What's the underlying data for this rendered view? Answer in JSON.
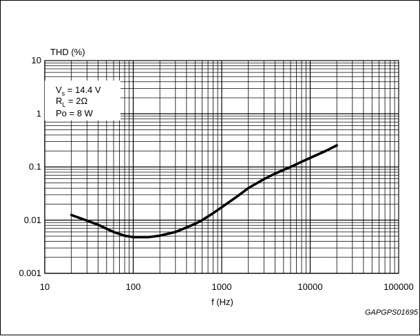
{
  "figure_code": "GAPGPS01695",
  "conditions": {
    "vs": {
      "symbol": "V",
      "sub": "s",
      "value": " = 14.4 V"
    },
    "rl": {
      "symbol": "R",
      "sub": "L",
      "value": " = 2Ω"
    },
    "po": {
      "text": "Po = 8 W"
    }
  },
  "chart_data": {
    "type": "line",
    "ylabel": "THD (%)",
    "xlabel": "f (Hz)",
    "x_scale": "log",
    "y_scale": "log",
    "xlim": [
      10,
      100000
    ],
    "ylim": [
      0.001,
      10
    ],
    "x_ticks": [
      10,
      100,
      1000,
      10000,
      100000
    ],
    "x_tick_labels": [
      "10",
      "100",
      "1000",
      "10000",
      "100000"
    ],
    "y_ticks": [
      0.001,
      0.01,
      0.1,
      1,
      10
    ],
    "y_tick_labels": [
      "0.001",
      "0.01",
      "0.1",
      "1",
      "10"
    ],
    "grid": true,
    "line_color": "#000000",
    "series": [
      {
        "x": [
          20,
          30,
          40,
          50,
          60,
          70,
          80,
          100,
          120,
          150,
          200,
          300,
          400,
          500,
          600,
          800,
          1000,
          1500,
          2000,
          3000,
          4000,
          5000,
          6000,
          8000,
          10000,
          15000,
          20000
        ],
        "values": [
          0.0125,
          0.0098,
          0.0082,
          0.0069,
          0.006,
          0.0055,
          0.0051,
          0.0048,
          0.0048,
          0.0048,
          0.0051,
          0.006,
          0.0073,
          0.0085,
          0.01,
          0.0135,
          0.0175,
          0.028,
          0.04,
          0.059,
          0.075,
          0.088,
          0.1,
          0.125,
          0.148,
          0.2,
          0.255
        ]
      }
    ]
  }
}
